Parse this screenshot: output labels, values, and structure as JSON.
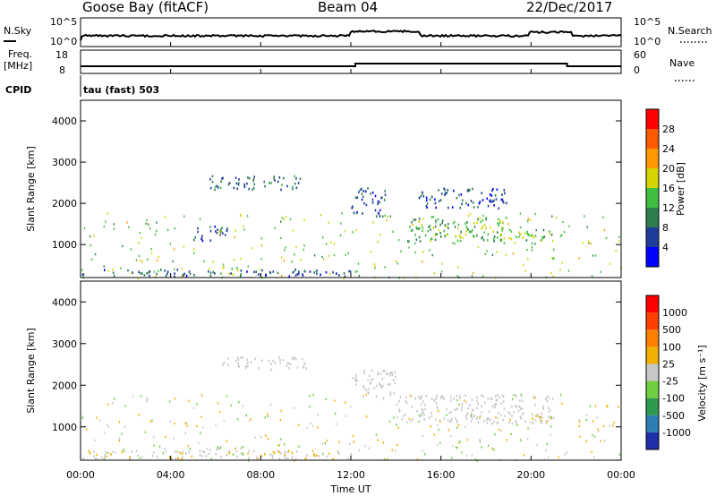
{
  "header": {
    "station": "Goose Bay (fitACF)",
    "beam": "Beam 04",
    "date": "22/Dec/2017"
  },
  "nsky_panel": {
    "left_label": "N.Sky",
    "right_label": "N.Search",
    "yticks_left": [
      "10^5",
      "10^0"
    ],
    "yticks_right": [
      "10^5",
      "10^0"
    ]
  },
  "freq_panel": {
    "left_label_1": "Freq.",
    "left_label_2": "[MHz]",
    "right_label": "Nave",
    "yticks_left": [
      "18",
      "8"
    ],
    "yticks_right": [
      "60",
      "0"
    ]
  },
  "cpid_panel": {
    "label": "CPID",
    "value": "tau (fast) 503"
  },
  "power_panel": {
    "ylabel": "Slant Range [km]",
    "yticks": [
      "4000",
      "3000",
      "2000",
      "1000"
    ],
    "colorbar_label": "Power [dB]",
    "colorbar_ticks": [
      "28",
      "24",
      "20",
      "16",
      "12",
      "8",
      "4"
    ],
    "colorbar_colors": [
      "#0000ff",
      "#1f3d9c",
      "#2e7d4f",
      "#3fbf3f",
      "#d4d400",
      "#ff9900",
      "#ff5a00",
      "#ff0000"
    ]
  },
  "velocity_panel": {
    "ylabel": "Slant Range [km]",
    "yticks": [
      "4000",
      "3000",
      "2000",
      "1000"
    ],
    "colorbar_label": "Velocity [m s⁻¹]",
    "colorbar_ticks": [
      "1000",
      "500",
      "100",
      "25",
      "-25",
      "-100",
      "-500",
      "-1000"
    ],
    "colorbar_colors": [
      "#1f2fa8",
      "#2e7db5",
      "#2e9a4f",
      "#6fcf3f",
      "#c8c8c8",
      "#f0b000",
      "#ff8000",
      "#ff4000",
      "#ff0000"
    ]
  },
  "xaxis": {
    "ticks": [
      "00:00",
      "04:00",
      "08:00",
      "12:00",
      "16:00",
      "20:00",
      "00:00"
    ],
    "label": "Time UT"
  },
  "chart_data": {
    "type": "heatmap",
    "title": "Goose Bay (fitACF)",
    "x_unit": "UT hours",
    "xlim": [
      0,
      24
    ],
    "ylim": [
      200,
      4500
    ],
    "xlabel": "Time UT",
    "ylabel": "Slant Range [km]",
    "series": [
      {
        "name": "Power [dB]",
        "scale": [
          0,
          30
        ],
        "regions": [
          {
            "t": [
              0.0,
              12.0
            ],
            "r": [
              250,
              420
            ],
            "value": 6
          },
          {
            "t": [
              6.0,
              7.0
            ],
            "r": [
              300,
              500
            ],
            "value": 14
          },
          {
            "t": [
              5.0,
              6.5
            ],
            "r": [
              1100,
              1500
            ],
            "value": 6
          },
          {
            "t": [
              5.7,
              9.8
            ],
            "r": [
              2350,
              2700
            ],
            "value": 8
          },
          {
            "t": [
              12.0,
              13.5
            ],
            "r": [
              1700,
              2400
            ],
            "value": 6
          },
          {
            "t": [
              14.5,
              19.0
            ],
            "r": [
              1100,
              1700
            ],
            "value": 12
          },
          {
            "t": [
              18.5,
              21.0
            ],
            "r": [
              1050,
              1400
            ],
            "value": 14
          },
          {
            "t": [
              15.0,
              19.0
            ],
            "r": [
              1900,
              2400
            ],
            "value": 6
          }
        ]
      },
      {
        "name": "Velocity [m s⁻¹]",
        "scale": [
          -1000,
          1000
        ],
        "regions": [
          {
            "t": [
              0.0,
              12.0
            ],
            "r": [
              250,
              450
            ],
            "value": 60
          },
          {
            "t": [
              6.0,
              7.5
            ],
            "r": [
              300,
              550
            ],
            "value": -80
          },
          {
            "t": [
              6.0,
              10.0
            ],
            "r": [
              2400,
              2700
            ],
            "value": 0
          },
          {
            "t": [
              12.0,
              14.0
            ],
            "r": [
              1700,
              2400
            ],
            "value": 0
          },
          {
            "t": [
              14.0,
              21.0
            ],
            "r": [
              1100,
              1800
            ],
            "value": 0
          },
          {
            "t": [
              20.0,
              21.0
            ],
            "r": [
              1050,
              1300
            ],
            "value": 80
          }
        ]
      }
    ]
  }
}
